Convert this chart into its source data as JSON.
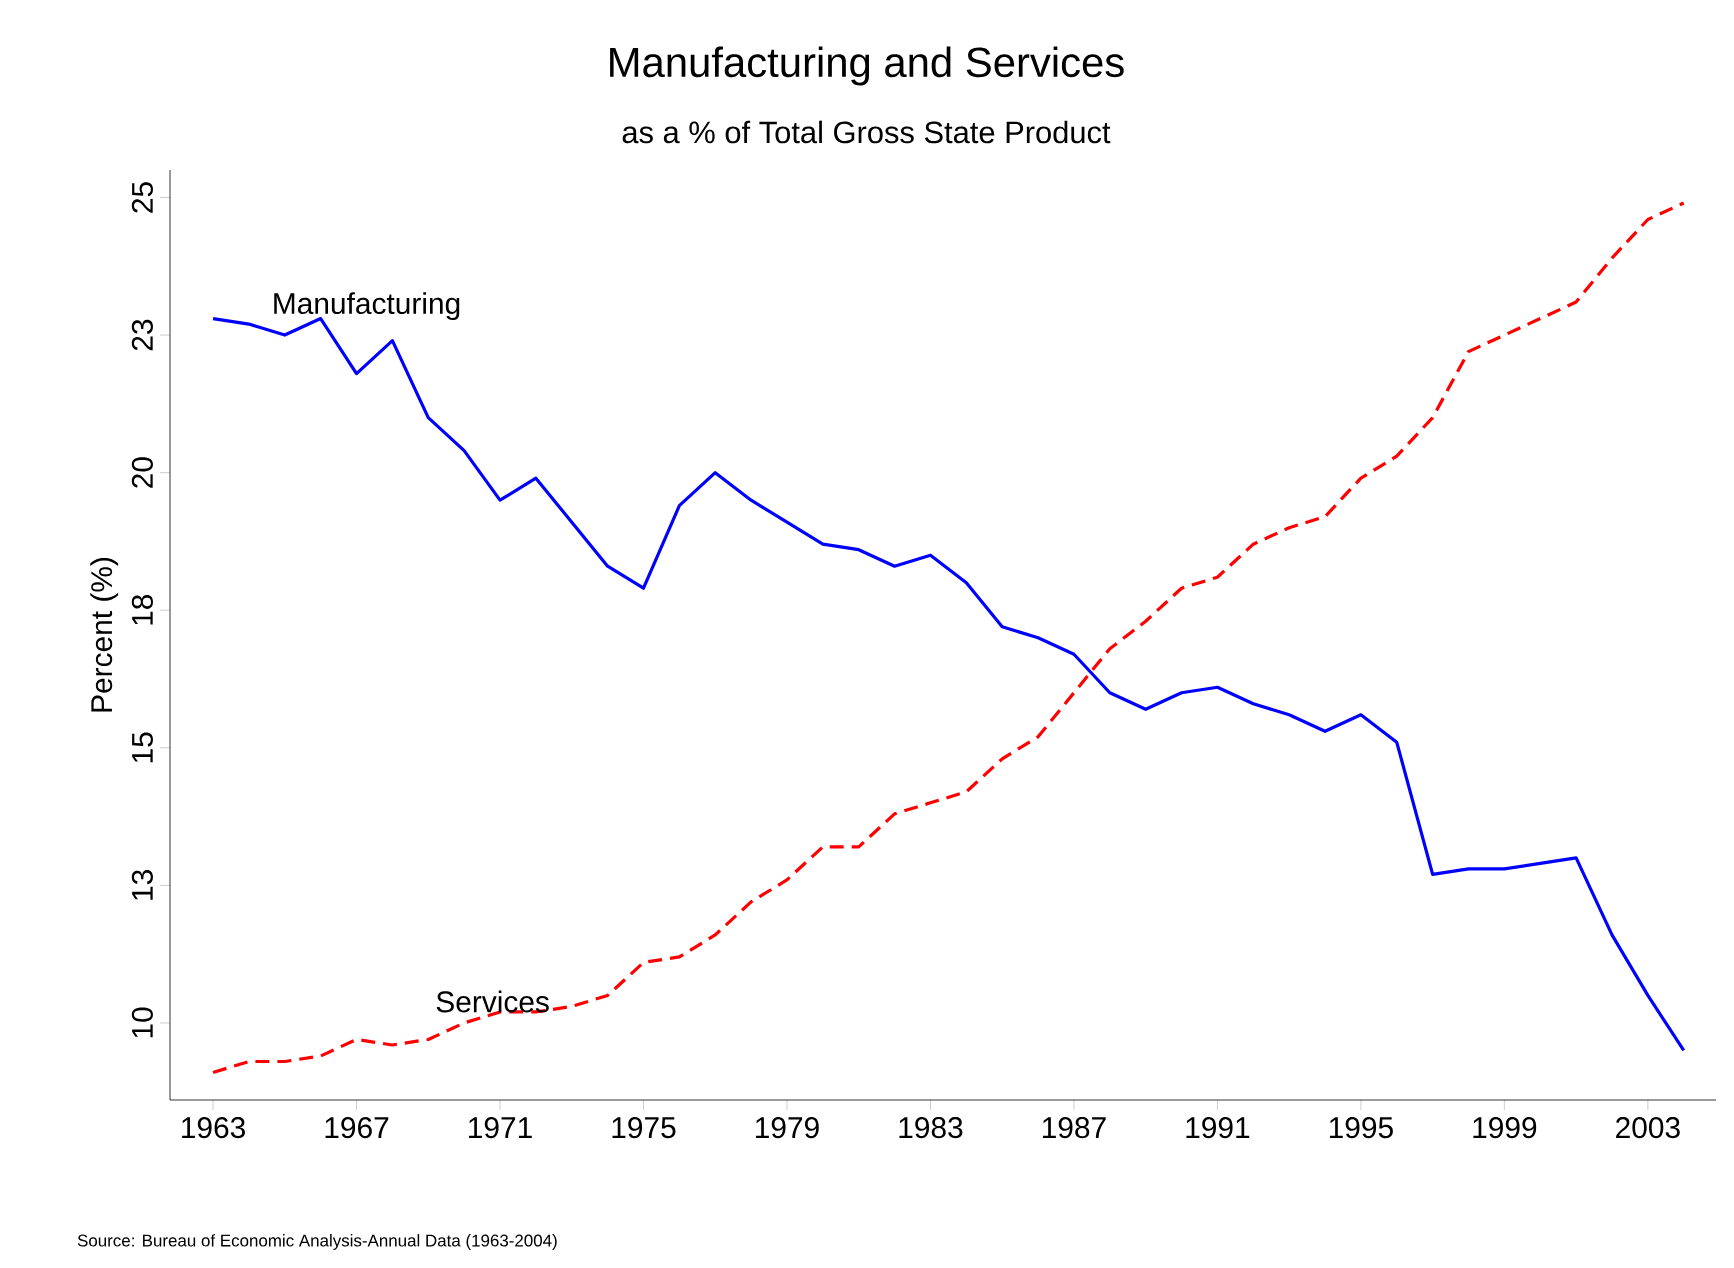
{
  "chart_data": {
    "type": "line",
    "title": "Manufacturing and Services",
    "subtitle": "as a % of Total Gross State Product",
    "ylabel": "Percent (%)",
    "annotations": [
      "Source: Bureau of Economic Analysis-Annual Data (1963-2004)"
    ],
    "x": [
      1963,
      1964,
      1965,
      1966,
      1967,
      1968,
      1969,
      1970,
      1971,
      1972,
      1973,
      1974,
      1975,
      1976,
      1977,
      1978,
      1979,
      1980,
      1981,
      1982,
      1983,
      1984,
      1985,
      1986,
      1987,
      1988,
      1989,
      1990,
      1991,
      1992,
      1993,
      1994,
      1995,
      1996,
      1997,
      1998,
      1999,
      2000,
      2001,
      2002,
      2003,
      2004
    ],
    "series": [
      {
        "name": "Manufacturing",
        "color": "#0000ff",
        "line_style": "solid",
        "values": [
          22.8,
          22.7,
          22.5,
          22.8,
          21.8,
          22.4,
          21.0,
          20.4,
          19.5,
          19.9,
          19.1,
          18.3,
          17.9,
          19.4,
          20.0,
          19.5,
          19.1,
          18.7,
          18.6,
          18.3,
          18.5,
          18.0,
          17.2,
          17.0,
          16.7,
          16.0,
          15.7,
          16.0,
          16.1,
          15.8,
          15.6,
          15.3,
          15.6,
          15.1,
          12.7,
          12.8,
          12.8,
          12.9,
          13.0,
          11.6,
          10.5,
          9.5
        ]
      },
      {
        "name": "Services",
        "color": "#ff0000",
        "line_style": "dashed",
        "values": [
          9.1,
          9.3,
          9.3,
          9.4,
          9.7,
          9.6,
          9.7,
          10.0,
          10.2,
          10.2,
          10.3,
          10.5,
          11.1,
          11.2,
          11.6,
          12.2,
          12.6,
          13.2,
          13.2,
          13.8,
          14.0,
          14.2,
          14.8,
          15.2,
          16.0,
          16.8,
          17.3,
          17.9,
          18.1,
          18.7,
          19.0,
          19.2,
          19.9,
          20.3,
          21.0,
          22.2,
          22.5,
          22.8,
          23.1,
          23.9,
          24.6,
          24.9
        ]
      }
    ],
    "xlim": [
      1961.8,
      2004.9
    ],
    "ylim": [
      8.6,
      25.5
    ],
    "xticks": [
      1963,
      1967,
      1971,
      1975,
      1979,
      1983,
      1987,
      1991,
      1995,
      1999,
      2003
    ],
    "yticks": [
      10,
      {
        "value": 12.5,
        "label": "13"
      },
      15,
      {
        "value": 17.5,
        "label": "18"
      },
      20,
      {
        "value": 22.5,
        "label": "23"
      },
      25
    ],
    "marker": "none"
  }
}
